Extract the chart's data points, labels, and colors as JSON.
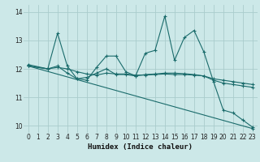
{
  "title": "",
  "xlabel": "Humidex (Indice chaleur)",
  "ylabel": "",
  "background_color": "#cce8e8",
  "grid_color": "#aacccc",
  "line_color": "#1a6b6b",
  "xlim": [
    -0.5,
    23.5
  ],
  "ylim": [
    9.75,
    14.25
  ],
  "yticks": [
    10,
    11,
    12,
    13,
    14
  ],
  "xticks": [
    0,
    1,
    2,
    3,
    4,
    5,
    6,
    7,
    8,
    9,
    10,
    11,
    12,
    13,
    14,
    15,
    16,
    17,
    18,
    19,
    20,
    21,
    22,
    23
  ],
  "lines": [
    {
      "x": [
        0,
        2,
        3,
        4,
        5,
        6,
        7,
        8,
        9,
        10,
        11,
        12,
        13,
        14,
        15,
        16,
        17,
        18,
        19,
        20,
        21,
        22,
        23
      ],
      "y": [
        12.15,
        12.0,
        13.25,
        12.1,
        11.65,
        11.6,
        12.05,
        12.45,
        12.45,
        11.9,
        11.75,
        12.55,
        12.65,
        13.85,
        12.3,
        13.1,
        13.35,
        12.6,
        11.55,
        10.55,
        10.45,
        10.2,
        9.95
      ]
    },
    {
      "x": [
        0,
        2,
        3,
        4,
        5,
        6,
        7,
        8,
        9,
        10,
        11,
        12,
        13,
        14,
        15,
        16,
        17,
        18,
        19,
        20,
        21,
        22,
        23
      ],
      "y": [
        12.1,
        12.0,
        12.1,
        11.85,
        11.65,
        11.7,
        11.85,
        12.0,
        11.8,
        11.8,
        11.75,
        11.8,
        11.82,
        11.85,
        11.85,
        11.83,
        11.8,
        11.75,
        11.6,
        11.5,
        11.45,
        11.4,
        11.35
      ]
    },
    {
      "x": [
        0,
        2,
        3,
        4,
        5,
        6,
        7,
        8,
        9,
        10,
        11,
        12,
        13,
        14,
        15,
        16,
        17,
        18,
        19,
        20,
        21,
        22,
        23
      ],
      "y": [
        12.1,
        12.0,
        12.05,
        12.0,
        11.9,
        11.82,
        11.78,
        11.85,
        11.82,
        11.82,
        11.78,
        11.78,
        11.8,
        11.82,
        11.8,
        11.8,
        11.78,
        11.75,
        11.65,
        11.6,
        11.55,
        11.5,
        11.45
      ]
    },
    {
      "x": [
        0,
        23
      ],
      "y": [
        12.1,
        9.9
      ]
    }
  ]
}
